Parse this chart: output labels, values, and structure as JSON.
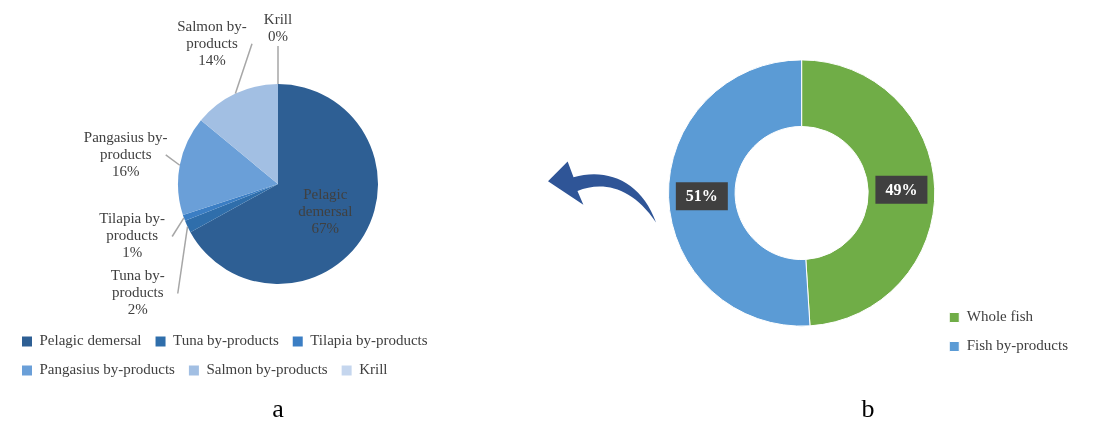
{
  "chart_data": [
    {
      "type": "pie",
      "categories": [
        "Pelagic demersal",
        "Tuna by-products",
        "Tilapia by-products",
        "Pangasius by-products",
        "Salmon by-products",
        "Krill"
      ],
      "values": [
        67,
        2,
        1,
        16,
        14,
        0
      ],
      "colors": [
        "#2e5f94",
        "#2f6eab",
        "#3b7ec4",
        "#6a9fd8",
        "#a2bfe3",
        "#c5d6ee"
      ],
      "value_labels": [
        "67%",
        "2%",
        "1%",
        "16%",
        "14%",
        "0%"
      ],
      "legend": "bottom",
      "annotations": [
        "a"
      ]
    },
    {
      "type": "donut",
      "categories": [
        "Whole fish",
        "Fish by-products"
      ],
      "values": [
        49,
        51
      ],
      "colors": [
        "#70ad47",
        "#5b9bd5"
      ],
      "value_labels": [
        "49%",
        "51%"
      ],
      "legend": "bottom right",
      "annotations": [
        "b"
      ]
    }
  ]
}
